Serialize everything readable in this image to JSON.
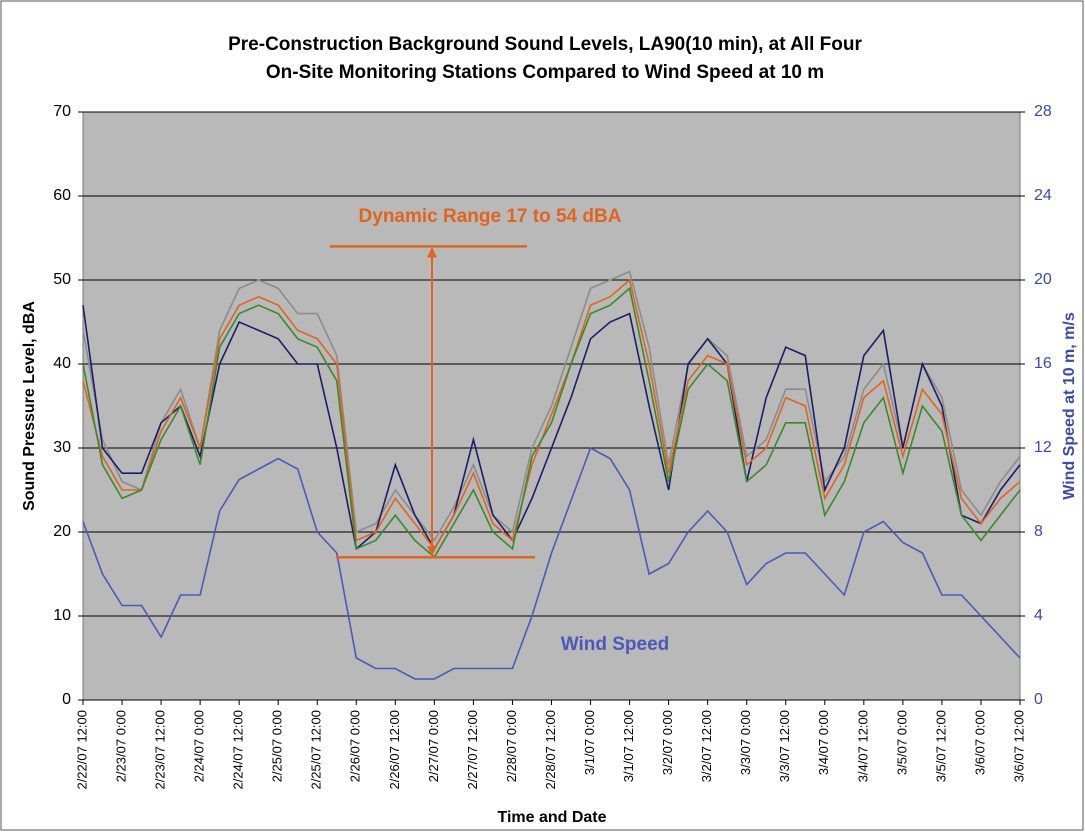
{
  "chart_data": {
    "type": "line",
    "title": [
      "Pre-Construction Background Sound Levels, LA90(10 min), at All Four",
      "On-Site Monitoring Stations Compared to Wind Speed at 10 m"
    ],
    "xlabel": "Time and Date",
    "ylabel": "Sound Pressure Level, dBA",
    "y2label": "Wind Speed at 10 m, m/s",
    "categories": [
      "2/22/07 12:00",
      null,
      "2/23/07 0:00",
      null,
      "2/23/07 12:00",
      null,
      "2/24/07 0:00",
      null,
      "2/24/07 12:00",
      null,
      "2/25/07 0:00",
      null,
      "2/25/07 12:00",
      null,
      "2/26/07 0:00",
      null,
      "2/26/07 12:00",
      null,
      "2/27/07 0:00",
      null,
      "2/27/07 12:00",
      null,
      "2/28/07 0:00",
      null,
      "2/28/07 12:00",
      null,
      "3/1/07 0:00",
      null,
      "3/1/07 12:00",
      null,
      "3/2/07 0:00",
      null,
      "3/2/07 12:00",
      null,
      "3/3/07 0:00",
      null,
      "3/3/07 12:00",
      null,
      "3/4/07 0:00",
      null,
      "3/4/07 12:00",
      null,
      "3/5/07 0:00",
      null,
      "3/5/07 12:00",
      null,
      "3/6/07 0:00",
      null,
      "3/6/07 12:00"
    ],
    "series": [
      {
        "color": "#8c8c8c",
        "values": [
          44,
          31,
          26,
          25,
          33,
          37,
          30,
          44,
          49,
          50,
          49,
          46,
          46,
          41,
          20,
          21,
          25,
          22,
          19,
          23,
          28,
          22,
          20,
          30,
          35,
          42,
          49,
          50,
          51,
          42,
          28,
          40,
          43,
          41,
          29,
          31,
          37,
          37,
          26,
          29,
          37,
          40,
          30,
          40,
          36,
          25,
          22,
          26,
          29
        ]
      },
      {
        "color": "#1c1c6c",
        "values": [
          47,
          30,
          27,
          27,
          33,
          35,
          29,
          40,
          45,
          44,
          43,
          40,
          40,
          30,
          18,
          20,
          28,
          22,
          18,
          22,
          31,
          22,
          19,
          24,
          30,
          36,
          43,
          45,
          46,
          35,
          25,
          40,
          43,
          40,
          26,
          36,
          42,
          41,
          25,
          30,
          41,
          44,
          30,
          40,
          35,
          22,
          21,
          25,
          28
        ]
      },
      {
        "color": "#e0641e",
        "values": [
          38,
          29,
          25,
          25,
          32,
          36,
          30,
          43,
          47,
          48,
          47,
          44,
          43,
          40,
          19,
          20,
          24,
          21,
          18,
          22,
          27,
          21,
          19,
          28,
          34,
          40,
          47,
          48,
          50,
          40,
          27,
          38,
          41,
          40,
          28,
          30,
          36,
          35,
          24,
          28,
          36,
          38,
          29,
          37,
          34,
          24,
          21,
          24,
          26
        ]
      },
      {
        "color": "#3a8a2a",
        "values": [
          40,
          28,
          24,
          25,
          31,
          35,
          28,
          42,
          46,
          47,
          46,
          43,
          42,
          38,
          18,
          19,
          22,
          19,
          17,
          21,
          25,
          20,
          18,
          29,
          33,
          40,
          46,
          47,
          49,
          38,
          26,
          37,
          40,
          38,
          26,
          28,
          33,
          33,
          22,
          26,
          33,
          36,
          27,
          35,
          32,
          22,
          19,
          22,
          25
        ]
      },
      {
        "name": "Wind Speed",
        "color": "#4a5ab8",
        "axis": "y2",
        "values": [
          8.5,
          6,
          4.5,
          4.5,
          3,
          5,
          5,
          9,
          10.5,
          11,
          11.5,
          11,
          8,
          7,
          2,
          1.5,
          1.5,
          1,
          1,
          1.5,
          1.5,
          1.5,
          1.5,
          4,
          7,
          9.5,
          12,
          11.5,
          10,
          6,
          6.5,
          8,
          9,
          8,
          5.5,
          6.5,
          7,
          7,
          6,
          5,
          8,
          8.5,
          7.5,
          7,
          5,
          5,
          4,
          3,
          2
        ]
      }
    ],
    "range": {
      "label": "Dynamic Range 17 to 54 dBA",
      "low": 17,
      "high": 54,
      "color": "#e0641e"
    },
    "ylim": [
      0,
      70
    ],
    "yticks": [
      0,
      10,
      20,
      30,
      40,
      50,
      60,
      70
    ],
    "y2lim": [
      0,
      28
    ],
    "y2ticks": [
      0,
      4,
      8,
      12,
      16,
      20,
      24,
      28
    ],
    "grid": true,
    "background": "#b9b9b9"
  }
}
